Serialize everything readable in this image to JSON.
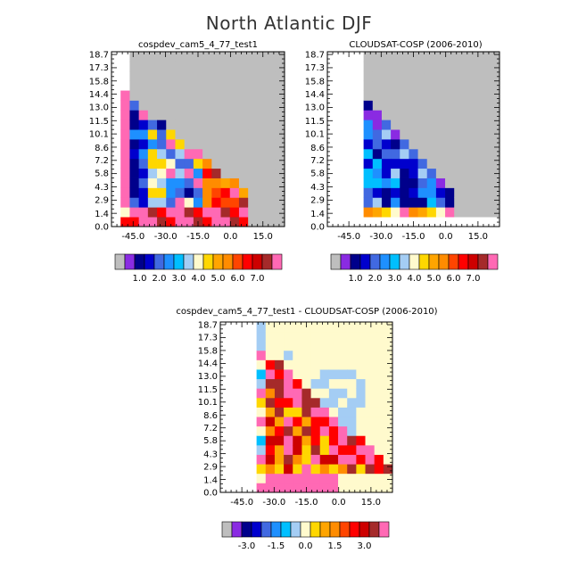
{
  "figure": {
    "title": "North Atlantic DJF"
  },
  "colors": {
    "missing": "#bebebe",
    "abs_palette": [
      "#bebebe",
      "#8a2be2",
      "#00008b",
      "#0000cd",
      "#4169e1",
      "#1e90ff",
      "#00bfff",
      "#a4cdf4",
      "#fffacd",
      "#ffd700",
      "#ffa500",
      "#ff8c00",
      "#ff4500",
      "#ff0000",
      "#cd0000",
      "#a52a2a",
      "#ff69b4"
    ],
    "diff_palette": [
      "#bebebe",
      "#8a2be2",
      "#00008b",
      "#0000cd",
      "#4169e1",
      "#1e90ff",
      "#00bfff",
      "#a4cdf4",
      "#fffacd",
      "#ffd700",
      "#ffa500",
      "#ff8c00",
      "#ff4500",
      "#ff0000",
      "#cd0000",
      "#a52a2a",
      "#ff69b4"
    ]
  },
  "chart_data": [
    {
      "type": "heatmap",
      "title": "cospdev_cam5_4_77_test1",
      "xlabel": "",
      "ylabel": "",
      "xlim": [
        -55,
        25
      ],
      "ylim": [
        0,
        19
      ],
      "xticks": [
        "-45.0",
        "-30.0",
        "-15.0",
        "0.0",
        "15.0"
      ],
      "xtick_values": [
        -45,
        -30,
        -15,
        0,
        15
      ],
      "yticks": [
        "0.0",
        "1.4",
        "2.9",
        "4.3",
        "5.8",
        "7.2",
        "8.6",
        "10.1",
        "11.5",
        "13.0",
        "14.4",
        "15.8",
        "17.3",
        "18.7"
      ],
      "ytick_values": [
        0,
        1.4,
        2.9,
        4.3,
        5.8,
        7.2,
        8.6,
        10.1,
        11.5,
        13.0,
        14.4,
        15.8,
        17.3,
        18.7
      ],
      "colorbar_labels": [
        "1.0",
        "2.0",
        "3.0",
        "4.0",
        "5.0",
        "6.0",
        "7.0"
      ],
      "colorbar_boxes": 17
    },
    {
      "type": "heatmap",
      "title": "CLOUDSAT-COSP (2006-2010)",
      "xlabel": "",
      "ylabel": "",
      "xlim": [
        -55,
        25
      ],
      "ylim": [
        0,
        19
      ],
      "xticks": [
        "-45.0",
        "-30.0",
        "-15.0",
        "0.0",
        "15.0"
      ],
      "xtick_values": [
        -45,
        -30,
        -15,
        0,
        15
      ],
      "yticks": [
        "0.0",
        "1.4",
        "2.9",
        "4.3",
        "5.8",
        "7.2",
        "8.6",
        "10.1",
        "11.5",
        "13.0",
        "14.4",
        "15.8",
        "17.3",
        "18.7"
      ],
      "ytick_values": [
        0,
        1.4,
        2.9,
        4.3,
        5.8,
        7.2,
        8.6,
        10.1,
        11.5,
        13.0,
        14.4,
        15.8,
        17.3,
        18.7
      ],
      "colorbar_labels": [
        "1.0",
        "2.0",
        "3.0",
        "4.0",
        "5.0",
        "6.0",
        "7.0"
      ],
      "colorbar_boxes": 17
    },
    {
      "type": "heatmap",
      "title": "cospdev_cam5_4_77_test1 - CLOUDSAT-COSP (2006-2010)",
      "xlabel": "",
      "ylabel": "",
      "xlim": [
        -55,
        25
      ],
      "ylim": [
        0,
        19
      ],
      "xticks": [
        "-45.0",
        "-30.0",
        "-15.0",
        "0.0",
        "15.0"
      ],
      "xtick_values": [
        -45,
        -30,
        -15,
        0,
        15
      ],
      "yticks": [
        "0.0",
        "1.4",
        "2.9",
        "4.3",
        "5.8",
        "7.2",
        "8.6",
        "10.1",
        "11.5",
        "13.0",
        "14.4",
        "15.8",
        "17.3",
        "18.7"
      ],
      "ytick_values": [
        0,
        1.4,
        2.9,
        4.3,
        5.8,
        7.2,
        8.6,
        10.1,
        11.5,
        13.0,
        14.4,
        15.8,
        17.3,
        18.7
      ],
      "colorbar_labels": [
        "-3.0",
        "-1.5",
        "0.0",
        "1.5",
        "3.0"
      ],
      "colorbar_boxes": 17
    }
  ]
}
